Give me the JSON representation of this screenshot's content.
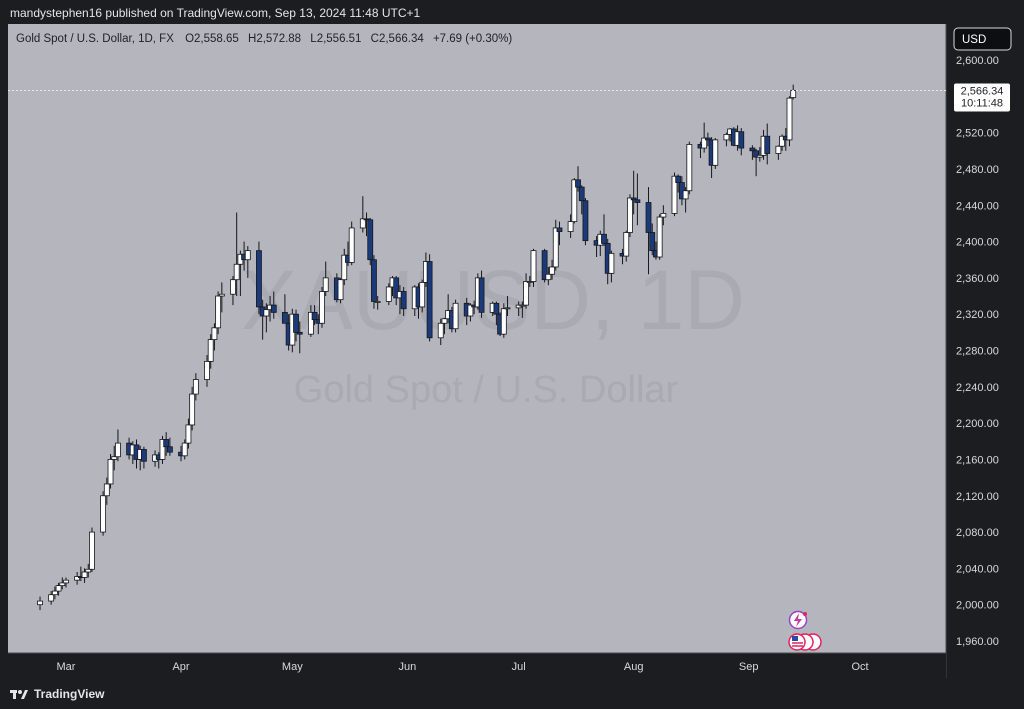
{
  "publisher_line": "mandystephen16 published on TradingView.com, Sep 13, 2024 11:48 UTC+1",
  "footer_brand": "TradingView",
  "symbol_line": "Gold Spot / U.S. Dollar, 1D, FX",
  "ohlc": {
    "open_label": "O",
    "open": "2,558.65",
    "high_label": "H",
    "high": "2,572.88",
    "low_label": "L",
    "low": "2,556.51",
    "close_label": "C",
    "close": "2,566.34",
    "change": "+7.69 (+0.30%)"
  },
  "currency_button": "USD",
  "watermark": {
    "ticker": "XAUUSD, 1D",
    "name": "Gold Spot / U.S. Dollar"
  },
  "price_label": {
    "price": "2,566.34",
    "countdown": "10:11:48"
  },
  "colors": {
    "background": "#b4b5bd",
    "panel": "#1c1d21",
    "up_body": "#ffffff",
    "down_body": "#1b3a7a",
    "wick": "#16171b"
  },
  "icons": [
    "tradingview-logo-icon",
    "lightning-event-icon",
    "us-flag-event-icon"
  ],
  "chart_data": {
    "type": "candlestick",
    "title": "Gold Spot / U.S. Dollar, 1D, FX",
    "ylim": [
      1930,
      2620
    ],
    "yticks": [
      "2,600.00",
      "2,560.00",
      "2,520.00",
      "2,480.00",
      "2,440.00",
      "2,400.00",
      "2,360.00",
      "2,320.00",
      "2,280.00",
      "2,240.00",
      "2,200.00",
      "2,160.00",
      "2,120.00",
      "2,080.00",
      "2,040.00",
      "2,000.00",
      "1,960.00"
    ],
    "xticks": [
      "Mar",
      "Apr",
      "May",
      "Jun",
      "Jul",
      "Aug",
      "Sep",
      "Oct"
    ],
    "grid": false,
    "candles": [
      {
        "date": "2024-02-23",
        "o": 2000,
        "h": 2009,
        "l": 1994,
        "c": 2004
      },
      {
        "date": "2024-02-26",
        "o": 2004,
        "h": 2015,
        "l": 2000,
        "c": 2011
      },
      {
        "date": "2024-02-27",
        "o": 2011,
        "h": 2020,
        "l": 2006,
        "c": 2015
      },
      {
        "date": "2024-02-28",
        "o": 2015,
        "h": 2024,
        "l": 2010,
        "c": 2021
      },
      {
        "date": "2024-02-29",
        "o": 2021,
        "h": 2030,
        "l": 2017,
        "c": 2024
      },
      {
        "date": "2024-03-01",
        "o": 2024,
        "h": 2030,
        "l": 2019,
        "c": 2027
      },
      {
        "date": "2024-03-04",
        "o": 2027,
        "h": 2036,
        "l": 2022,
        "c": 2031
      },
      {
        "date": "2024-03-05",
        "o": 2031,
        "h": 2042,
        "l": 2026,
        "c": 2030
      },
      {
        "date": "2024-03-06",
        "o": 2030,
        "h": 2040,
        "l": 2024,
        "c": 2036
      },
      {
        "date": "2024-03-07",
        "o": 2036,
        "h": 2045,
        "l": 2030,
        "c": 2039
      },
      {
        "date": "2024-03-08",
        "o": 2039,
        "h": 2085,
        "l": 2036,
        "c": 2080
      },
      {
        "date": "2024-03-11",
        "o": 2080,
        "h": 2125,
        "l": 2076,
        "c": 2120
      },
      {
        "date": "2024-03-12",
        "o": 2120,
        "h": 2140,
        "l": 2110,
        "c": 2133
      },
      {
        "date": "2024-03-13",
        "o": 2133,
        "h": 2166,
        "l": 2128,
        "c": 2160
      },
      {
        "date": "2024-03-14",
        "o": 2160,
        "h": 2175,
        "l": 2148,
        "c": 2163
      },
      {
        "date": "2024-03-15",
        "o": 2163,
        "h": 2193,
        "l": 2158,
        "c": 2178
      },
      {
        "date": "2024-03-18",
        "o": 2178,
        "h": 2184,
        "l": 2160,
        "c": 2165
      },
      {
        "date": "2024-03-19",
        "o": 2165,
        "h": 2180,
        "l": 2155,
        "c": 2176
      },
      {
        "date": "2024-03-20",
        "o": 2176,
        "h": 2182,
        "l": 2150,
        "c": 2160
      },
      {
        "date": "2024-03-21",
        "o": 2160,
        "h": 2175,
        "l": 2148,
        "c": 2171
      },
      {
        "date": "2024-03-22",
        "o": 2171,
        "h": 2174,
        "l": 2150,
        "c": 2158
      },
      {
        "date": "2024-03-25",
        "o": 2158,
        "h": 2170,
        "l": 2152,
        "c": 2165
      },
      {
        "date": "2024-03-26",
        "o": 2165,
        "h": 2168,
        "l": 2150,
        "c": 2160
      },
      {
        "date": "2024-03-27",
        "o": 2160,
        "h": 2186,
        "l": 2155,
        "c": 2182
      },
      {
        "date": "2024-03-28",
        "o": 2182,
        "h": 2190,
        "l": 2164,
        "c": 2174
      },
      {
        "date": "2024-03-29",
        "o": 2174,
        "h": 2184,
        "l": 2164,
        "c": 2168
      },
      {
        "date": "2024-04-01",
        "o": 2168,
        "h": 2175,
        "l": 2158,
        "c": 2164
      },
      {
        "date": "2024-04-02",
        "o": 2164,
        "h": 2182,
        "l": 2160,
        "c": 2178
      },
      {
        "date": "2024-04-03",
        "o": 2178,
        "h": 2205,
        "l": 2172,
        "c": 2198
      },
      {
        "date": "2024-04-04",
        "o": 2198,
        "h": 2240,
        "l": 2192,
        "c": 2232
      },
      {
        "date": "2024-04-05",
        "o": 2232,
        "h": 2255,
        "l": 2225,
        "c": 2248
      },
      {
        "date": "2024-04-08",
        "o": 2248,
        "h": 2275,
        "l": 2240,
        "c": 2268
      },
      {
        "date": "2024-04-09",
        "o": 2268,
        "h": 2298,
        "l": 2260,
        "c": 2292
      },
      {
        "date": "2024-04-10",
        "o": 2292,
        "h": 2310,
        "l": 2280,
        "c": 2305
      },
      {
        "date": "2024-04-11",
        "o": 2305,
        "h": 2345,
        "l": 2298,
        "c": 2340
      },
      {
        "date": "2024-04-12",
        "o": 2340,
        "h": 2355,
        "l": 2322,
        "c": 2342
      },
      {
        "date": "2024-04-15",
        "o": 2342,
        "h": 2362,
        "l": 2330,
        "c": 2358
      },
      {
        "date": "2024-04-16",
        "o": 2358,
        "h": 2432,
        "l": 2340,
        "c": 2375
      },
      {
        "date": "2024-04-17",
        "o": 2375,
        "h": 2390,
        "l": 2340,
        "c": 2386
      },
      {
        "date": "2024-04-18",
        "o": 2386,
        "h": 2400,
        "l": 2368,
        "c": 2380
      },
      {
        "date": "2024-04-19",
        "o": 2380,
        "h": 2395,
        "l": 2360,
        "c": 2390
      },
      {
        "date": "2024-04-22",
        "o": 2390,
        "h": 2400,
        "l": 2320,
        "c": 2328
      },
      {
        "date": "2024-04-23",
        "o": 2328,
        "h": 2336,
        "l": 2292,
        "c": 2318
      },
      {
        "date": "2024-04-24",
        "o": 2318,
        "h": 2332,
        "l": 2300,
        "c": 2325
      },
      {
        "date": "2024-04-25",
        "o": 2325,
        "h": 2340,
        "l": 2312,
        "c": 2330
      },
      {
        "date": "2024-04-26",
        "o": 2330,
        "h": 2345,
        "l": 2315,
        "c": 2322
      },
      {
        "date": "2024-04-29",
        "o": 2322,
        "h": 2342,
        "l": 2310,
        "c": 2310
      },
      {
        "date": "2024-04-30",
        "o": 2310,
        "h": 2320,
        "l": 2280,
        "c": 2286
      },
      {
        "date": "2024-05-01",
        "o": 2286,
        "h": 2326,
        "l": 2278,
        "c": 2320
      },
      {
        "date": "2024-05-02",
        "o": 2320,
        "h": 2325,
        "l": 2290,
        "c": 2300
      },
      {
        "date": "2024-05-03",
        "o": 2300,
        "h": 2312,
        "l": 2277,
        "c": 2298
      },
      {
        "date": "2024-05-06",
        "o": 2298,
        "h": 2330,
        "l": 2295,
        "c": 2322
      },
      {
        "date": "2024-05-07",
        "o": 2322,
        "h": 2330,
        "l": 2308,
        "c": 2314
      },
      {
        "date": "2024-05-08",
        "o": 2314,
        "h": 2320,
        "l": 2298,
        "c": 2310
      },
      {
        "date": "2024-05-09",
        "o": 2310,
        "h": 2350,
        "l": 2305,
        "c": 2345
      },
      {
        "date": "2024-05-10",
        "o": 2345,
        "h": 2378,
        "l": 2340,
        "c": 2360
      },
      {
        "date": "2024-05-13",
        "o": 2360,
        "h": 2365,
        "l": 2333,
        "c": 2336
      },
      {
        "date": "2024-05-14",
        "o": 2336,
        "h": 2360,
        "l": 2332,
        "c": 2358
      },
      {
        "date": "2024-05-15",
        "o": 2358,
        "h": 2392,
        "l": 2352,
        "c": 2385
      },
      {
        "date": "2024-05-16",
        "o": 2385,
        "h": 2400,
        "l": 2373,
        "c": 2377
      },
      {
        "date": "2024-05-17",
        "o": 2377,
        "h": 2422,
        "l": 2374,
        "c": 2415
      },
      {
        "date": "2024-05-20",
        "o": 2415,
        "h": 2450,
        "l": 2410,
        "c": 2425
      },
      {
        "date": "2024-05-21",
        "o": 2425,
        "h": 2432,
        "l": 2406,
        "c": 2424
      },
      {
        "date": "2024-05-22",
        "o": 2424,
        "h": 2426,
        "l": 2374,
        "c": 2380
      },
      {
        "date": "2024-05-23",
        "o": 2380,
        "h": 2385,
        "l": 2326,
        "c": 2334
      },
      {
        "date": "2024-05-24",
        "o": 2334,
        "h": 2340,
        "l": 2325,
        "c": 2334
      },
      {
        "date": "2024-05-27",
        "o": 2334,
        "h": 2354,
        "l": 2330,
        "c": 2350
      },
      {
        "date": "2024-05-28",
        "o": 2350,
        "h": 2362,
        "l": 2340,
        "c": 2360
      },
      {
        "date": "2024-05-29",
        "o": 2360,
        "h": 2362,
        "l": 2330,
        "c": 2338
      },
      {
        "date": "2024-05-30",
        "o": 2338,
        "h": 2352,
        "l": 2320,
        "c": 2345
      },
      {
        "date": "2024-05-31",
        "o": 2345,
        "h": 2350,
        "l": 2318,
        "c": 2326
      },
      {
        "date": "2024-06-03",
        "o": 2326,
        "h": 2352,
        "l": 2318,
        "c": 2350
      },
      {
        "date": "2024-06-04",
        "o": 2350,
        "h": 2354,
        "l": 2315,
        "c": 2328
      },
      {
        "date": "2024-06-05",
        "o": 2328,
        "h": 2358,
        "l": 2322,
        "c": 2355
      },
      {
        "date": "2024-06-06",
        "o": 2355,
        "h": 2388,
        "l": 2350,
        "c": 2378
      },
      {
        "date": "2024-06-07",
        "o": 2378,
        "h": 2386,
        "l": 2290,
        "c": 2294
      },
      {
        "date": "2024-06-10",
        "o": 2294,
        "h": 2315,
        "l": 2286,
        "c": 2310
      },
      {
        "date": "2024-06-11",
        "o": 2310,
        "h": 2316,
        "l": 2298,
        "c": 2315
      },
      {
        "date": "2024-06-12",
        "o": 2315,
        "h": 2342,
        "l": 2310,
        "c": 2324
      },
      {
        "date": "2024-06-13",
        "o": 2324,
        "h": 2328,
        "l": 2300,
        "c": 2304
      },
      {
        "date": "2024-06-14",
        "o": 2304,
        "h": 2336,
        "l": 2300,
        "c": 2332
      },
      {
        "date": "2024-06-17",
        "o": 2332,
        "h": 2338,
        "l": 2308,
        "c": 2318
      },
      {
        "date": "2024-06-18",
        "o": 2318,
        "h": 2332,
        "l": 2312,
        "c": 2330
      },
      {
        "date": "2024-06-19",
        "o": 2330,
        "h": 2335,
        "l": 2320,
        "c": 2328
      },
      {
        "date": "2024-06-20",
        "o": 2328,
        "h": 2365,
        "l": 2325,
        "c": 2360
      },
      {
        "date": "2024-06-21",
        "o": 2360,
        "h": 2368,
        "l": 2316,
        "c": 2322
      },
      {
        "date": "2024-06-24",
        "o": 2322,
        "h": 2334,
        "l": 2318,
        "c": 2332
      },
      {
        "date": "2024-06-25",
        "o": 2332,
        "h": 2334,
        "l": 2308,
        "c": 2320
      },
      {
        "date": "2024-06-26",
        "o": 2320,
        "h": 2322,
        "l": 2296,
        "c": 2298
      },
      {
        "date": "2024-06-27",
        "o": 2298,
        "h": 2332,
        "l": 2294,
        "c": 2326
      },
      {
        "date": "2024-06-28",
        "o": 2326,
        "h": 2340,
        "l": 2318,
        "c": 2327
      },
      {
        "date": "2024-07-01",
        "o": 2327,
        "h": 2334,
        "l": 2318,
        "c": 2330
      },
      {
        "date": "2024-07-02",
        "o": 2330,
        "h": 2334,
        "l": 2316,
        "c": 2330
      },
      {
        "date": "2024-07-03",
        "o": 2330,
        "h": 2365,
        "l": 2326,
        "c": 2356
      },
      {
        "date": "2024-07-04",
        "o": 2356,
        "h": 2362,
        "l": 2350,
        "c": 2356
      },
      {
        "date": "2024-07-05",
        "o": 2356,
        "h": 2392,
        "l": 2350,
        "c": 2390
      },
      {
        "date": "2024-07-08",
        "o": 2390,
        "h": 2392,
        "l": 2355,
        "c": 2358
      },
      {
        "date": "2024-07-09",
        "o": 2358,
        "h": 2372,
        "l": 2352,
        "c": 2364
      },
      {
        "date": "2024-07-10",
        "o": 2364,
        "h": 2380,
        "l": 2358,
        "c": 2372
      },
      {
        "date": "2024-07-11",
        "o": 2372,
        "h": 2424,
        "l": 2368,
        "c": 2415
      },
      {
        "date": "2024-07-12",
        "o": 2415,
        "h": 2422,
        "l": 2396,
        "c": 2411
      },
      {
        "date": "2024-07-15",
        "o": 2411,
        "h": 2430,
        "l": 2404,
        "c": 2422
      },
      {
        "date": "2024-07-16",
        "o": 2422,
        "h": 2470,
        "l": 2420,
        "c": 2468
      },
      {
        "date": "2024-07-17",
        "o": 2468,
        "h": 2483,
        "l": 2455,
        "c": 2460
      },
      {
        "date": "2024-07-18",
        "o": 2460,
        "h": 2462,
        "l": 2430,
        "c": 2445
      },
      {
        "date": "2024-07-19",
        "o": 2445,
        "h": 2448,
        "l": 2396,
        "c": 2401
      },
      {
        "date": "2024-07-22",
        "o": 2401,
        "h": 2406,
        "l": 2383,
        "c": 2396
      },
      {
        "date": "2024-07-23",
        "o": 2396,
        "h": 2412,
        "l": 2384,
        "c": 2408
      },
      {
        "date": "2024-07-24",
        "o": 2408,
        "h": 2430,
        "l": 2395,
        "c": 2398
      },
      {
        "date": "2024-07-25",
        "o": 2398,
        "h": 2403,
        "l": 2353,
        "c": 2365
      },
      {
        "date": "2024-07-26",
        "o": 2365,
        "h": 2390,
        "l": 2355,
        "c": 2387
      },
      {
        "date": "2024-07-29",
        "o": 2387,
        "h": 2392,
        "l": 2375,
        "c": 2384
      },
      {
        "date": "2024-07-30",
        "o": 2384,
        "h": 2412,
        "l": 2378,
        "c": 2410
      },
      {
        "date": "2024-07-31",
        "o": 2410,
        "h": 2452,
        "l": 2405,
        "c": 2448
      },
      {
        "date": "2024-08-01",
        "o": 2448,
        "h": 2478,
        "l": 2430,
        "c": 2446
      },
      {
        "date": "2024-08-02",
        "o": 2446,
        "h": 2475,
        "l": 2418,
        "c": 2443
      },
      {
        "date": "2024-08-05",
        "o": 2443,
        "h": 2460,
        "l": 2364,
        "c": 2410
      },
      {
        "date": "2024-08-06",
        "o": 2410,
        "h": 2420,
        "l": 2385,
        "c": 2390
      },
      {
        "date": "2024-08-07",
        "o": 2390,
        "h": 2400,
        "l": 2380,
        "c": 2383
      },
      {
        "date": "2024-08-08",
        "o": 2383,
        "h": 2430,
        "l": 2380,
        "c": 2427
      },
      {
        "date": "2024-08-09",
        "o": 2427,
        "h": 2440,
        "l": 2418,
        "c": 2431
      },
      {
        "date": "2024-08-12",
        "o": 2431,
        "h": 2476,
        "l": 2428,
        "c": 2472
      },
      {
        "date": "2024-08-13",
        "o": 2472,
        "h": 2474,
        "l": 2454,
        "c": 2465
      },
      {
        "date": "2024-08-14",
        "o": 2465,
        "h": 2472,
        "l": 2440,
        "c": 2447
      },
      {
        "date": "2024-08-15",
        "o": 2447,
        "h": 2460,
        "l": 2432,
        "c": 2456
      },
      {
        "date": "2024-08-16",
        "o": 2456,
        "h": 2510,
        "l": 2452,
        "c": 2507
      },
      {
        "date": "2024-08-19",
        "o": 2507,
        "h": 2510,
        "l": 2492,
        "c": 2503
      },
      {
        "date": "2024-08-20",
        "o": 2503,
        "h": 2531,
        "l": 2498,
        "c": 2514
      },
      {
        "date": "2024-08-21",
        "o": 2514,
        "h": 2520,
        "l": 2505,
        "c": 2512
      },
      {
        "date": "2024-08-22",
        "o": 2512,
        "h": 2515,
        "l": 2470,
        "c": 2484
      },
      {
        "date": "2024-08-23",
        "o": 2484,
        "h": 2514,
        "l": 2480,
        "c": 2512
      },
      {
        "date": "2024-08-26",
        "o": 2512,
        "h": 2520,
        "l": 2505,
        "c": 2518
      },
      {
        "date": "2024-08-27",
        "o": 2518,
        "h": 2525,
        "l": 2510,
        "c": 2524
      },
      {
        "date": "2024-08-28",
        "o": 2524,
        "h": 2526,
        "l": 2505,
        "c": 2506
      },
      {
        "date": "2024-08-29",
        "o": 2506,
        "h": 2528,
        "l": 2500,
        "c": 2521
      },
      {
        "date": "2024-08-30",
        "o": 2521,
        "h": 2525,
        "l": 2495,
        "c": 2503
      },
      {
        "date": "2024-09-02",
        "o": 2503,
        "h": 2506,
        "l": 2490,
        "c": 2500
      },
      {
        "date": "2024-09-03",
        "o": 2500,
        "h": 2502,
        "l": 2472,
        "c": 2493
      },
      {
        "date": "2024-09-04",
        "o": 2493,
        "h": 2504,
        "l": 2488,
        "c": 2495
      },
      {
        "date": "2024-09-05",
        "o": 2495,
        "h": 2523,
        "l": 2490,
        "c": 2516
      },
      {
        "date": "2024-09-06",
        "o": 2516,
        "h": 2530,
        "l": 2485,
        "c": 2497
      },
      {
        "date": "2024-09-09",
        "o": 2497,
        "h": 2506,
        "l": 2490,
        "c": 2505
      },
      {
        "date": "2024-09-10",
        "o": 2505,
        "h": 2518,
        "l": 2500,
        "c": 2516
      },
      {
        "date": "2024-09-11",
        "o": 2516,
        "h": 2525,
        "l": 2500,
        "c": 2512
      },
      {
        "date": "2024-09-12",
        "o": 2512,
        "h": 2560,
        "l": 2505,
        "c": 2558
      },
      {
        "date": "2024-09-13",
        "o": 2558.65,
        "h": 2572.88,
        "l": 2556.51,
        "c": 2566.34
      }
    ]
  }
}
